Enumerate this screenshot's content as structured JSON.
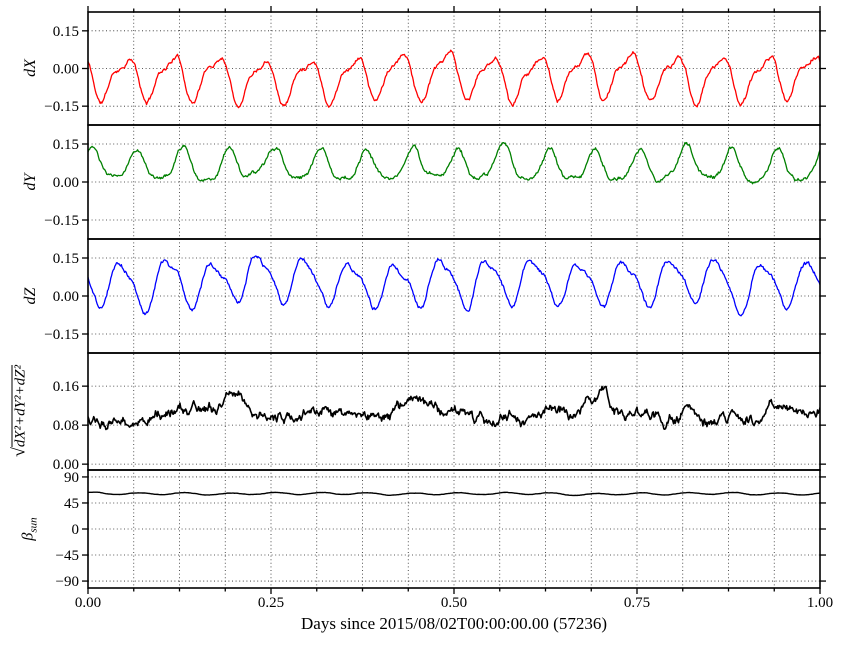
{
  "figure": {
    "background": "#ffffff",
    "grid_style": "black dotted at x minor/major ticks and y major ticks"
  },
  "chart_data": {
    "type": "line",
    "title": "",
    "xlabel": "Days since 2015/08/02T00:00:00.00 (57236)",
    "xlim": [
      0,
      1
    ],
    "xticks": [
      0,
      0.25,
      0.5,
      0.75,
      1.0
    ],
    "xticklabels": [
      "0.00",
      "0.25",
      "0.50",
      "0.75",
      "1.00"
    ],
    "x_minor_step": 0.0625,
    "grid": true,
    "legend": "none",
    "subplots": [
      {
        "id": "dX",
        "ylabel": "dX",
        "color": "#ff0000",
        "ylim": [
          -0.225,
          0.225
        ],
        "yticks": [
          -0.15,
          0.0,
          0.15
        ],
        "yticklabels": [
          "−0.15",
          "0.00",
          "0.15"
        ],
        "linewidth": 1.3,
        "signal": {
          "description": "~16 orbital cycles per day, peaks ~+0.07, troughs ~−0.15, with noise",
          "mean": -0.032,
          "amplitude": 0.08,
          "harmonic2": 0.026,
          "cycles": 16,
          "phase": 2.7,
          "h2phase": 1.5,
          "wander": 0.004,
          "noise": 0.0048,
          "seed": 11,
          "points": 900
        }
      },
      {
        "id": "dY",
        "ylabel": "dY",
        "color": "#008000",
        "ylim": [
          -0.225,
          0.225
        ],
        "yticks": [
          -0.15,
          0.0,
          0.15
        ],
        "yticklabels": [
          "−0.15",
          "0.00",
          "0.15"
        ],
        "linewidth": 1.3,
        "signal": {
          "description": "~16 cycles per day, peaks ~+0.14, troughs ~0.00, with noise",
          "mean": 0.063,
          "amplitude": 0.058,
          "harmonic2": 0.016,
          "cycles": 16,
          "phase": 1.1,
          "h2phase": 0.4,
          "wander": 0.004,
          "noise": 0.0045,
          "seed": 23,
          "points": 900
        }
      },
      {
        "id": "dZ",
        "ylabel": "dZ",
        "color": "#0000ff",
        "ylim": [
          -0.225,
          0.225
        ],
        "yticks": [
          -0.15,
          0.0,
          0.15
        ],
        "yticklabels": [
          "−0.15",
          "0.00",
          "0.15"
        ],
        "linewidth": 1.3,
        "signal": {
          "description": "~16 cycles per day, peaks ~+0.15, troughs ~−0.04, with noise",
          "mean": 0.055,
          "amplitude": 0.085,
          "harmonic2": 0.02,
          "cycles": 16,
          "phase": 3.2,
          "h2phase": 0.8,
          "wander": 0.005,
          "noise": 0.0048,
          "seed": 37,
          "points": 900
        }
      },
      {
        "id": "magnitude",
        "ylabel_prefix": "√",
        "ylabel_expr": "dX²+dY²+dZ²",
        "color": "#000000",
        "ylim": [
          -0.012,
          0.228
        ],
        "yticks": [
          0.0,
          0.08,
          0.16
        ],
        "yticklabels": [
          "0.00",
          "0.08",
          "0.16"
        ],
        "linewidth": 1.6,
        "signal": {
          "description": "noisy, roughly flat between ~0.08 and ~0.14, mean ~0.105",
          "mean": 0.106,
          "amplitude": 0.007,
          "harmonic2": 0,
          "cycles": 16,
          "phase": 0.5,
          "h2phase": 0,
          "wander": 0.011,
          "noise": 0.006,
          "seed": 53,
          "points": 900
        }
      },
      {
        "id": "beta-sun",
        "ylabel_symbol": "β",
        "ylabel_sub": "sun",
        "color": "#000000",
        "ylim": [
          -102,
          102
        ],
        "yticks": [
          90,
          45,
          0,
          -45,
          -90
        ],
        "yticklabels": [
          "90",
          "45",
          "0",
          "−45",
          "−90"
        ],
        "linewidth": 1.4,
        "signal": {
          "description": "nearly constant ~61 degrees with small ~16 cycle ripple",
          "mean": 61,
          "amplitude": 1.7,
          "harmonic2": 0,
          "cycles": 16,
          "phase": 0.9,
          "h2phase": 0,
          "wander": 0.5,
          "noise": 0.16,
          "seed": 71,
          "points": 700
        }
      }
    ]
  }
}
